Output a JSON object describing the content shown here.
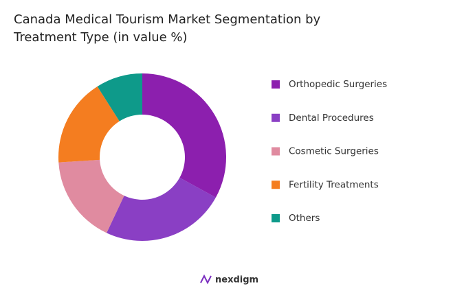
{
  "chart_data": {
    "type": "donut",
    "title": "Canada Medical Tourism Market Segmentation by Treatment Type (in value %)",
    "categories": [
      "Orthopedic Surgeries",
      "Dental Procedures",
      "Cosmetic Surgeries",
      "Fertility Treatments",
      "Others"
    ],
    "values": [
      33,
      24,
      17,
      17,
      9
    ],
    "colors": [
      "#8c1fae",
      "#8a3fc4",
      "#e08ba0",
      "#f47d20",
      "#0e9a8a"
    ],
    "legend": "right"
  },
  "logo": "nexdigm"
}
